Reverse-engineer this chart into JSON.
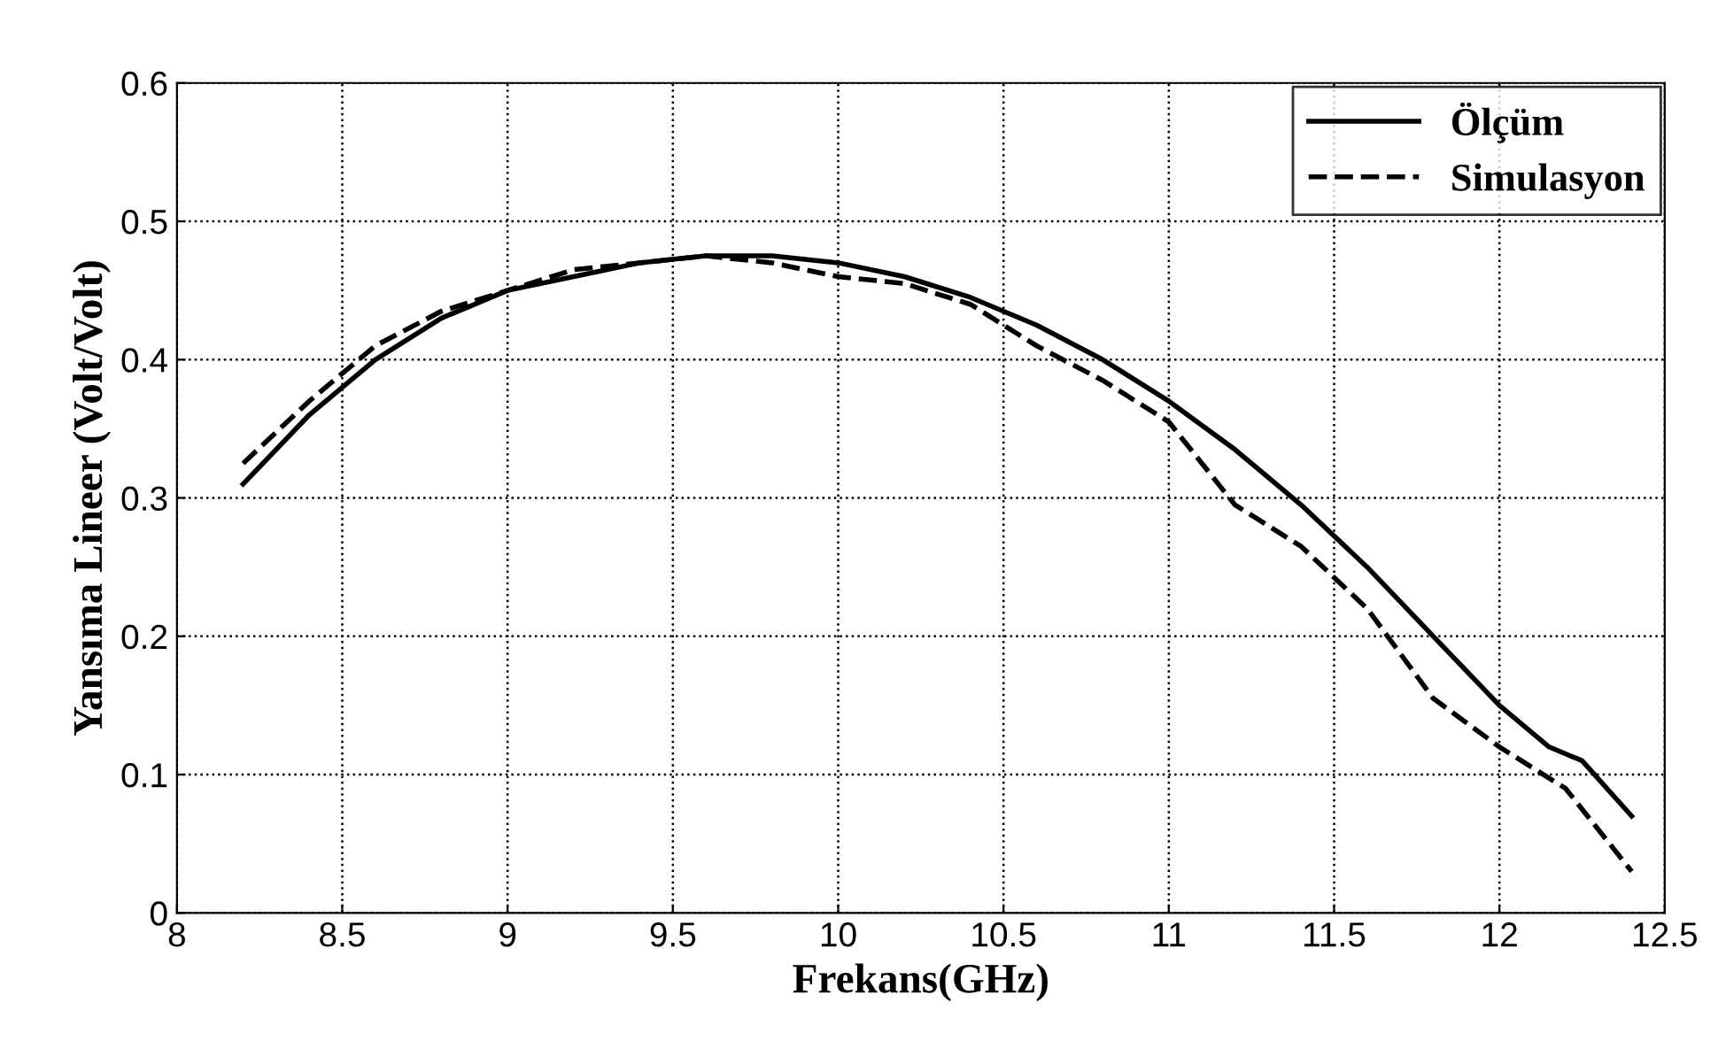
{
  "chart_data": {
    "type": "line",
    "xlabel": "Frekans(GHz)",
    "ylabel": "Yansıma Lineer (Volt/Volt)",
    "xlim": [
      8,
      12.5
    ],
    "xticks": [
      8,
      8.5,
      9,
      9.5,
      10,
      10.5,
      11,
      11.5,
      12,
      12.5
    ],
    "ylim": [
      0,
      0.6
    ],
    "yticks": [
      0,
      0.1,
      0.2,
      0.3,
      0.4,
      0.5,
      0.6
    ],
    "grid": true,
    "legend": "top right",
    "marker": "none",
    "series": [
      {
        "name": "Ölçüm",
        "color": "#000000",
        "line_style": "solid",
        "x": [
          8.2,
          8.4,
          8.6,
          8.8,
          9.0,
          9.2,
          9.4,
          9.6,
          9.8,
          10.0,
          10.2,
          10.4,
          10.6,
          10.8,
          11.0,
          11.2,
          11.4,
          11.6,
          11.8,
          12.0,
          12.15,
          12.25,
          12.4
        ],
        "values": [
          0.31,
          0.36,
          0.4,
          0.43,
          0.45,
          0.46,
          0.47,
          0.475,
          0.475,
          0.47,
          0.46,
          0.445,
          0.425,
          0.4,
          0.37,
          0.335,
          0.295,
          0.25,
          0.2,
          0.15,
          0.12,
          0.11,
          0.07
        ]
      },
      {
        "name": "Simulasyon",
        "color": "#000000",
        "line_style": "dashed",
        "x": [
          8.2,
          8.4,
          8.6,
          8.8,
          9.0,
          9.2,
          9.4,
          9.6,
          9.8,
          10.0,
          10.2,
          10.4,
          10.6,
          10.8,
          11.0,
          11.2,
          11.4,
          11.6,
          11.8,
          12.0,
          12.2,
          12.3,
          12.4
        ],
        "values": [
          0.325,
          0.37,
          0.41,
          0.435,
          0.45,
          0.465,
          0.47,
          0.475,
          0.47,
          0.46,
          0.455,
          0.44,
          0.41,
          0.385,
          0.355,
          0.295,
          0.265,
          0.22,
          0.155,
          0.12,
          0.09,
          0.06,
          0.03
        ]
      }
    ]
  }
}
